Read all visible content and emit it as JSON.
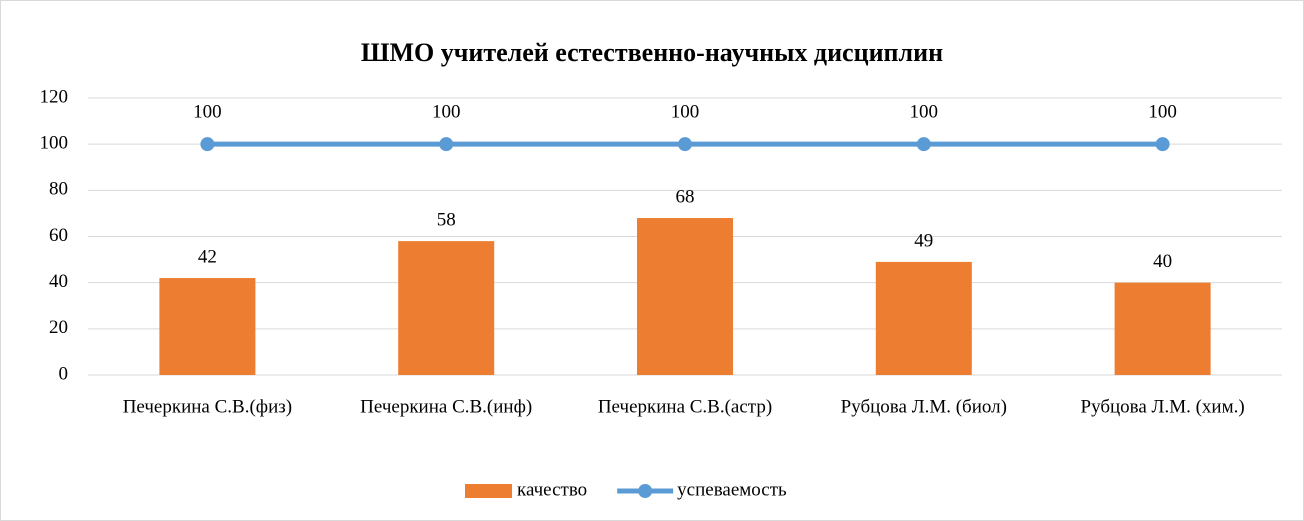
{
  "chart_data": {
    "type": "bar",
    "title": "ШМО учителей естественно-научных дисциплин",
    "categories": [
      "Печеркина С.В.(физ)",
      "Печеркина С.В.(инф)",
      "Печеркина С.В.(астр)",
      "Рубцова Л.М. (биол)",
      "Рубцова Л.М. (хим.)"
    ],
    "series": [
      {
        "name": "качество",
        "type": "bar",
        "color": "#ed7d31",
        "values": [
          42,
          58,
          68,
          49,
          40
        ]
      },
      {
        "name": "успеваемость",
        "type": "line",
        "color": "#5b9bd5",
        "values": [
          100,
          100,
          100,
          100,
          100
        ]
      }
    ],
    "ylim": [
      0,
      120
    ],
    "yticks": [
      0,
      20,
      40,
      60,
      80,
      100,
      120
    ],
    "grid": true,
    "legend": "bottom"
  }
}
